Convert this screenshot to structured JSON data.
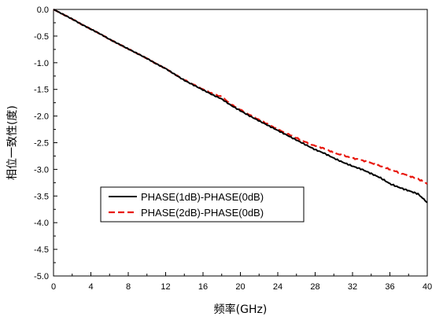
{
  "chart_data": {
    "type": "line",
    "xlabel": "频率(GHz)",
    "ylabel": "相位一致性(度)",
    "xlim": [
      0,
      40
    ],
    "ylim": [
      -5.0,
      0.0
    ],
    "x_ticks": [
      0,
      4,
      8,
      12,
      16,
      20,
      24,
      28,
      32,
      36,
      40
    ],
    "x_tick_labels": [
      "0",
      "4",
      "8",
      "12",
      "16",
      "20",
      "24",
      "28",
      "32",
      "36",
      "40"
    ],
    "y_ticks": [
      0.0,
      -0.5,
      -1.0,
      -1.5,
      -2.0,
      -2.5,
      -3.0,
      -3.5,
      -4.0,
      -4.5,
      -5.0
    ],
    "y_tick_labels": [
      "0.0",
      "-0.5",
      "-1.0",
      "-1.5",
      "-2.0",
      "-2.5",
      "-3.0",
      "-3.5",
      "-4.0",
      "-4.5",
      "-5.0"
    ],
    "grid": false,
    "legend": {
      "position": "lower-left"
    },
    "series": [
      {
        "name": "PHASE(1dB)-PHASE(0dB)",
        "color": "#000000",
        "style": "solid",
        "points": [
          [
            0,
            0.0
          ],
          [
            1,
            -0.09
          ],
          [
            2,
            -0.18
          ],
          [
            3,
            -0.28
          ],
          [
            4,
            -0.37
          ],
          [
            5,
            -0.46
          ],
          [
            6,
            -0.56
          ],
          [
            7,
            -0.65
          ],
          [
            8,
            -0.74
          ],
          [
            9,
            -0.83
          ],
          [
            10,
            -0.92
          ],
          [
            11,
            -1.02
          ],
          [
            12,
            -1.11
          ],
          [
            13,
            -1.22
          ],
          [
            14,
            -1.33
          ],
          [
            15,
            -1.42
          ],
          [
            16,
            -1.51
          ],
          [
            17,
            -1.6
          ],
          [
            18,
            -1.68
          ],
          [
            19,
            -1.8
          ],
          [
            20,
            -1.9
          ],
          [
            21,
            -2.0
          ],
          [
            22,
            -2.09
          ],
          [
            23,
            -2.18
          ],
          [
            24,
            -2.27
          ],
          [
            25,
            -2.36
          ],
          [
            26,
            -2.45
          ],
          [
            27,
            -2.54
          ],
          [
            28,
            -2.63
          ],
          [
            29,
            -2.7
          ],
          [
            30,
            -2.79
          ],
          [
            31,
            -2.87
          ],
          [
            32,
            -2.94
          ],
          [
            33,
            -3.0
          ],
          [
            34,
            -3.08
          ],
          [
            35,
            -3.16
          ],
          [
            36,
            -3.27
          ],
          [
            37,
            -3.34
          ],
          [
            38,
            -3.4
          ],
          [
            39,
            -3.46
          ],
          [
            40,
            -3.62
          ]
        ]
      },
      {
        "name": "PHASE(2dB)-PHASE(0dB)",
        "color": "#e8190f",
        "style": "dashed",
        "points": [
          [
            0,
            0.0
          ],
          [
            1,
            -0.09
          ],
          [
            2,
            -0.18
          ],
          [
            3,
            -0.28
          ],
          [
            4,
            -0.37
          ],
          [
            5,
            -0.46
          ],
          [
            6,
            -0.56
          ],
          [
            7,
            -0.65
          ],
          [
            8,
            -0.74
          ],
          [
            9,
            -0.83
          ],
          [
            10,
            -0.92
          ],
          [
            11,
            -1.02
          ],
          [
            12,
            -1.11
          ],
          [
            13,
            -1.22
          ],
          [
            14,
            -1.32
          ],
          [
            15,
            -1.41
          ],
          [
            16,
            -1.5
          ],
          [
            17,
            -1.58
          ],
          [
            18,
            -1.64
          ],
          [
            19,
            -1.78
          ],
          [
            20,
            -1.88
          ],
          [
            21,
            -1.98
          ],
          [
            22,
            -2.07
          ],
          [
            23,
            -2.16
          ],
          [
            24,
            -2.25
          ],
          [
            25,
            -2.33
          ],
          [
            26,
            -2.41
          ],
          [
            27,
            -2.49
          ],
          [
            28,
            -2.56
          ],
          [
            29,
            -2.61
          ],
          [
            30,
            -2.69
          ],
          [
            31,
            -2.74
          ],
          [
            32,
            -2.79
          ],
          [
            33,
            -2.83
          ],
          [
            34,
            -2.88
          ],
          [
            35,
            -2.94
          ],
          [
            36,
            -3.0
          ],
          [
            37,
            -3.06
          ],
          [
            38,
            -3.12
          ],
          [
            39,
            -3.18
          ],
          [
            40,
            -3.27
          ]
        ]
      }
    ]
  }
}
